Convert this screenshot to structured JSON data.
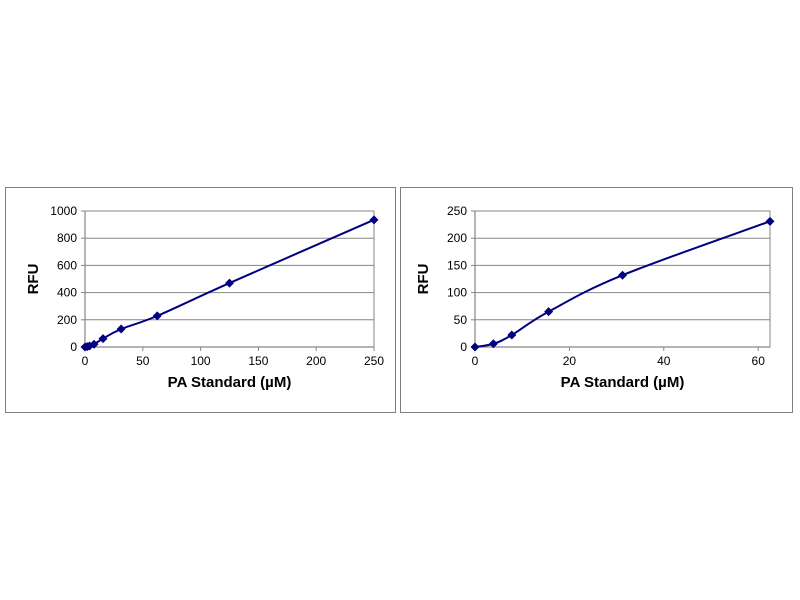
{
  "colors": {
    "series": "#000080",
    "grid": "#868686",
    "axis": "#868686",
    "panel_border": "#7f7f7f",
    "background": "#ffffff"
  },
  "chart_data": [
    {
      "type": "line",
      "marker": "diamond",
      "smooth": true,
      "title": "",
      "xlabel": "PA Standard (µM)",
      "ylabel": "RFU",
      "xlim": [
        0,
        250
      ],
      "ylim": [
        0,
        1000
      ],
      "xticks": [
        "0",
        "50",
        "100",
        "150",
        "200",
        "250"
      ],
      "yticks": [
        "0",
        "200",
        "400",
        "600",
        "800",
        "1000"
      ],
      "grid": "horizontal",
      "legend": "none",
      "series": [
        {
          "x": [
            0,
            1.95,
            3.9,
            7.8,
            15.6,
            31.25,
            62.5,
            125,
            250
          ],
          "y": [
            0,
            3,
            7,
            20,
            62,
            132,
            229,
            470,
            935
          ]
        }
      ]
    },
    {
      "type": "line",
      "marker": "diamond",
      "smooth": true,
      "title": "",
      "xlabel": "PA Standard (µM)",
      "ylabel": "RFU",
      "xlim": [
        0,
        62.5
      ],
      "ylim": [
        0,
        250
      ],
      "xticks": [
        "0",
        "20",
        "40",
        "60"
      ],
      "yticks": [
        "0",
        "50",
        "100",
        "150",
        "200",
        "250"
      ],
      "grid": "horizontal",
      "legend": "none",
      "series": [
        {
          "x": [
            0,
            3.9,
            7.8,
            15.6,
            31.25,
            62.5
          ],
          "y": [
            0,
            6,
            22,
            65,
            132,
            231
          ]
        }
      ]
    }
  ]
}
